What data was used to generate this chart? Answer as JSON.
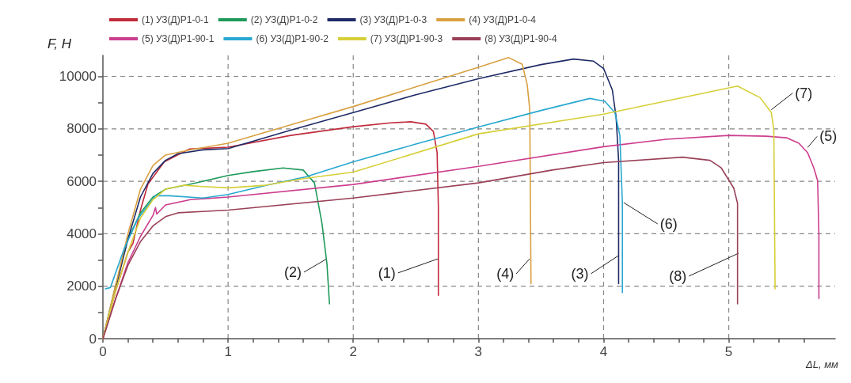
{
  "chart_data": {
    "type": "line",
    "xlabel": "ΔL, мм",
    "ylabel": "F, Н",
    "xlim": [
      0,
      5.85
    ],
    "ylim": [
      0,
      10800
    ],
    "xticks": [
      0,
      {
        "value": 0.2,
        "label": null
      },
      {
        "value": 0.4,
        "label": null
      },
      {
        "value": 0.6,
        "label": null
      },
      {
        "value": 0.8,
        "label": null
      },
      1,
      {
        "value": 1.2,
        "label": null
      },
      {
        "value": 1.4,
        "label": null
      },
      {
        "value": 1.6,
        "label": null
      },
      {
        "value": 1.8,
        "label": null
      },
      2,
      {
        "value": 2.2,
        "label": null
      },
      {
        "value": 2.4,
        "label": null
      },
      {
        "value": 2.6,
        "label": null
      },
      {
        "value": 2.8,
        "label": null
      },
      3,
      {
        "value": 3.2,
        "label": null
      },
      {
        "value": 3.4,
        "label": null
      },
      {
        "value": 3.6,
        "label": null
      },
      {
        "value": 3.8,
        "label": null
      },
      4,
      {
        "value": 4.2,
        "label": null
      },
      {
        "value": 4.4,
        "label": null
      },
      {
        "value": 4.6,
        "label": null
      },
      {
        "value": 4.8,
        "label": null
      },
      5,
      {
        "value": 5.2,
        "label": null
      },
      {
        "value": 5.4,
        "label": null
      },
      {
        "value": 5.6,
        "label": null
      }
    ],
    "yticks": [
      0,
      {
        "value": 1000,
        "label": null
      },
      2000,
      {
        "value": 3000,
        "label": null
      },
      4000,
      {
        "value": 5000,
        "label": null
      },
      6000,
      {
        "value": 7000,
        "label": null
      },
      8000,
      {
        "value": 9000,
        "label": null
      },
      10000
    ],
    "grid": true,
    "legend": "top",
    "marker": "none",
    "line_style": "solid",
    "series": [
      {
        "name": "(1) УЗ(Д)Р1-0-1",
        "color": "#c02a3a",
        "x": [
          0,
          0.1,
          0.2,
          0.24,
          0.3,
          0.36,
          0.49,
          0.69,
          1,
          1.5,
          2,
          2.3,
          2.46,
          2.58,
          2.64,
          2.67,
          2.68,
          2.68
        ],
        "values": [
          0,
          1800,
          3300,
          3630,
          4900,
          5900,
          6740,
          7230,
          7300,
          7750,
          8080,
          8230,
          8270,
          8180,
          7900,
          7100,
          5000,
          1650
        ]
      },
      {
        "name": "(2) УЗ(Д)Р1-0-2",
        "color": "#1f9a5a",
        "x": [
          0,
          0.1,
          0.2,
          0.3,
          0.4,
          0.5,
          0.69,
          1,
          1.2,
          1.44,
          1.6,
          1.69,
          1.75,
          1.79,
          1.81
        ],
        "values": [
          0,
          2000,
          3800,
          4800,
          5400,
          5700,
          5880,
          6220,
          6370,
          6510,
          6430,
          5940,
          4400,
          2850,
          1330
        ]
      },
      {
        "name": "(3) УЗ(Д)Р1-0-3",
        "color": "#1e2a66",
        "x": [
          0,
          0.1,
          0.2,
          0.3,
          0.4,
          0.5,
          0.6,
          0.8,
          1,
          1.5,
          2,
          2.5,
          3,
          3.5,
          3.76,
          3.92,
          4,
          4.07,
          4.1,
          4.12,
          4.12
        ],
        "values": [
          0,
          1900,
          3800,
          5400,
          6300,
          6800,
          7050,
          7200,
          7250,
          7950,
          8620,
          9300,
          9910,
          10450,
          10660,
          10580,
          10300,
          9480,
          8440,
          6800,
          2100
        ]
      },
      {
        "name": "(4) УЗ(Д)Р1-0-4",
        "color": "#d8a040",
        "x": [
          0,
          0.1,
          0.2,
          0.3,
          0.4,
          0.5,
          0.7,
          1,
          1.5,
          2,
          2.5,
          3,
          3.24,
          3.35,
          3.39,
          3.41,
          3.42
        ],
        "values": [
          0,
          2000,
          4000,
          5700,
          6600,
          7000,
          7200,
          7450,
          8150,
          8850,
          9600,
          10350,
          10720,
          10460,
          9680,
          8730,
          2100
        ]
      },
      {
        "name": "(5) УЗ(Д)Р1-90-1",
        "color": "#cc3d8e",
        "x": [
          0,
          0.1,
          0.2,
          0.3,
          0.4,
          0.42,
          0.43,
          0.5,
          0.7,
          1,
          2,
          3,
          4,
          4.5,
          5,
          5.3,
          5.46,
          5.56,
          5.63,
          5.68,
          5.71,
          5.72,
          5.72
        ],
        "values": [
          0,
          1500,
          2900,
          3900,
          4700,
          5000,
          4750,
          5100,
          5300,
          5400,
          5880,
          6570,
          7320,
          7600,
          7750,
          7720,
          7660,
          7450,
          7090,
          6500,
          6020,
          4000,
          1530
        ]
      },
      {
        "name": "(6) УЗ(Д)Р1-90-2",
        "color": "#28a8d0",
        "x": [
          0.02,
          0.06,
          0.17,
          0.28,
          0.42,
          0.53,
          0.8,
          1,
          1.31,
          1.62,
          2,
          2.5,
          3,
          3.5,
          3.89,
          4.01,
          4.09,
          4.13,
          4.15,
          4.15
        ],
        "values": [
          1900,
          1950,
          3430,
          4580,
          5450,
          5450,
          5360,
          5500,
          5850,
          6170,
          6740,
          7420,
          8070,
          8700,
          9160,
          9050,
          8620,
          7750,
          5160,
          1760
        ]
      },
      {
        "name": "(7) УЗ(Д)Р1-90-3",
        "color": "#d6cf38",
        "x": [
          0,
          0.1,
          0.2,
          0.3,
          0.4,
          0.5,
          0.65,
          0.8,
          1,
          1.3,
          1.6,
          2,
          3,
          4,
          5.07,
          5.25,
          5.34,
          5.36,
          5.37
        ],
        "values": [
          0,
          1800,
          3300,
          4600,
          5300,
          5700,
          5850,
          5800,
          5750,
          5850,
          6100,
          6350,
          7810,
          8560,
          9630,
          9190,
          8620,
          7950,
          1900
        ]
      },
      {
        "name": "(8) УЗ(Д)Р1-90-4",
        "color": "#9a4058",
        "x": [
          0,
          0.1,
          0.2,
          0.3,
          0.4,
          0.5,
          0.6,
          0.8,
          1,
          2,
          3,
          3.59,
          4,
          4.63,
          4.85,
          4.94,
          5.04,
          5.07,
          5.07
        ],
        "values": [
          0,
          1500,
          2800,
          3700,
          4300,
          4650,
          4800,
          4850,
          4900,
          5360,
          5940,
          6430,
          6710,
          6920,
          6800,
          6510,
          5740,
          5160,
          1330
        ]
      }
    ],
    "annotations": [
      {
        "text": "(1)",
        "x": 2.68,
        "y": 3050
      },
      {
        "text": "(2)",
        "x": 1.79,
        "y": 3050
      },
      {
        "text": "(3)",
        "x": 4.12,
        "y": 3170
      },
      {
        "text": "(4)",
        "x": 3.41,
        "y": 3050
      },
      {
        "text": "(5)",
        "x": 5.63,
        "y": 7290
      },
      {
        "text": "(6)",
        "x": 4.16,
        "y": 5190
      },
      {
        "text": "(7)",
        "x": 5.34,
        "y": 8730
      },
      {
        "text": "(8)",
        "x": 5.08,
        "y": 3260
      }
    ]
  }
}
